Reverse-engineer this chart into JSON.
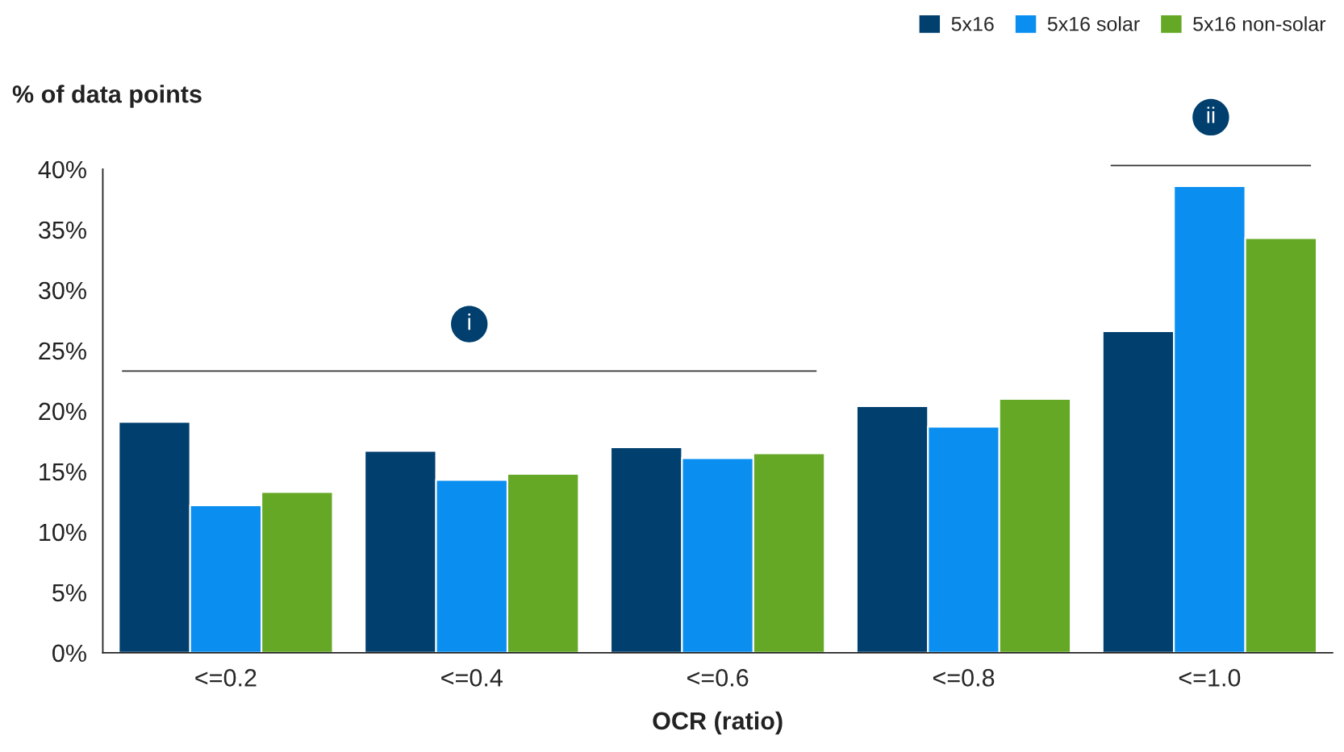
{
  "chart_data": {
    "type": "bar",
    "xlabel": "OCR (ratio)",
    "ylabel": "% of data points",
    "categories": [
      "<=0.2",
      "<=0.4",
      "<=0.6",
      "<=0.8",
      "<=1.0"
    ],
    "series": [
      {
        "name": "5x16",
        "color": "#003f6e",
        "values": [
          19.1,
          16.7,
          17.0,
          20.4,
          26.6
        ]
      },
      {
        "name": "5x16 solar",
        "color": "#0a8ff0",
        "values": [
          12.2,
          14.3,
          16.1,
          18.7,
          38.6
        ]
      },
      {
        "name": "5x16 non-solar",
        "color": "#65a826",
        "values": [
          13.3,
          14.8,
          16.5,
          21.0,
          34.3
        ]
      }
    ],
    "ylim": [
      0,
      40
    ],
    "yticks": [
      {
        "value": 0,
        "label": "0%"
      },
      {
        "value": 5,
        "label": "5%"
      },
      {
        "value": 10,
        "label": "10%"
      },
      {
        "value": 15,
        "label": "15%"
      },
      {
        "value": 20,
        "label": "20%"
      },
      {
        "value": 25,
        "label": "25%"
      },
      {
        "value": 30,
        "label": "30%"
      },
      {
        "value": 35,
        "label": "35%"
      },
      {
        "value": 40,
        "label": "40%"
      }
    ],
    "ref_lines": [
      {
        "axis": "y",
        "value": 23.3,
        "label": "i",
        "color": "#333333"
      }
    ],
    "annotations": [
      "ii"
    ],
    "grid": false,
    "legend": "top right"
  }
}
